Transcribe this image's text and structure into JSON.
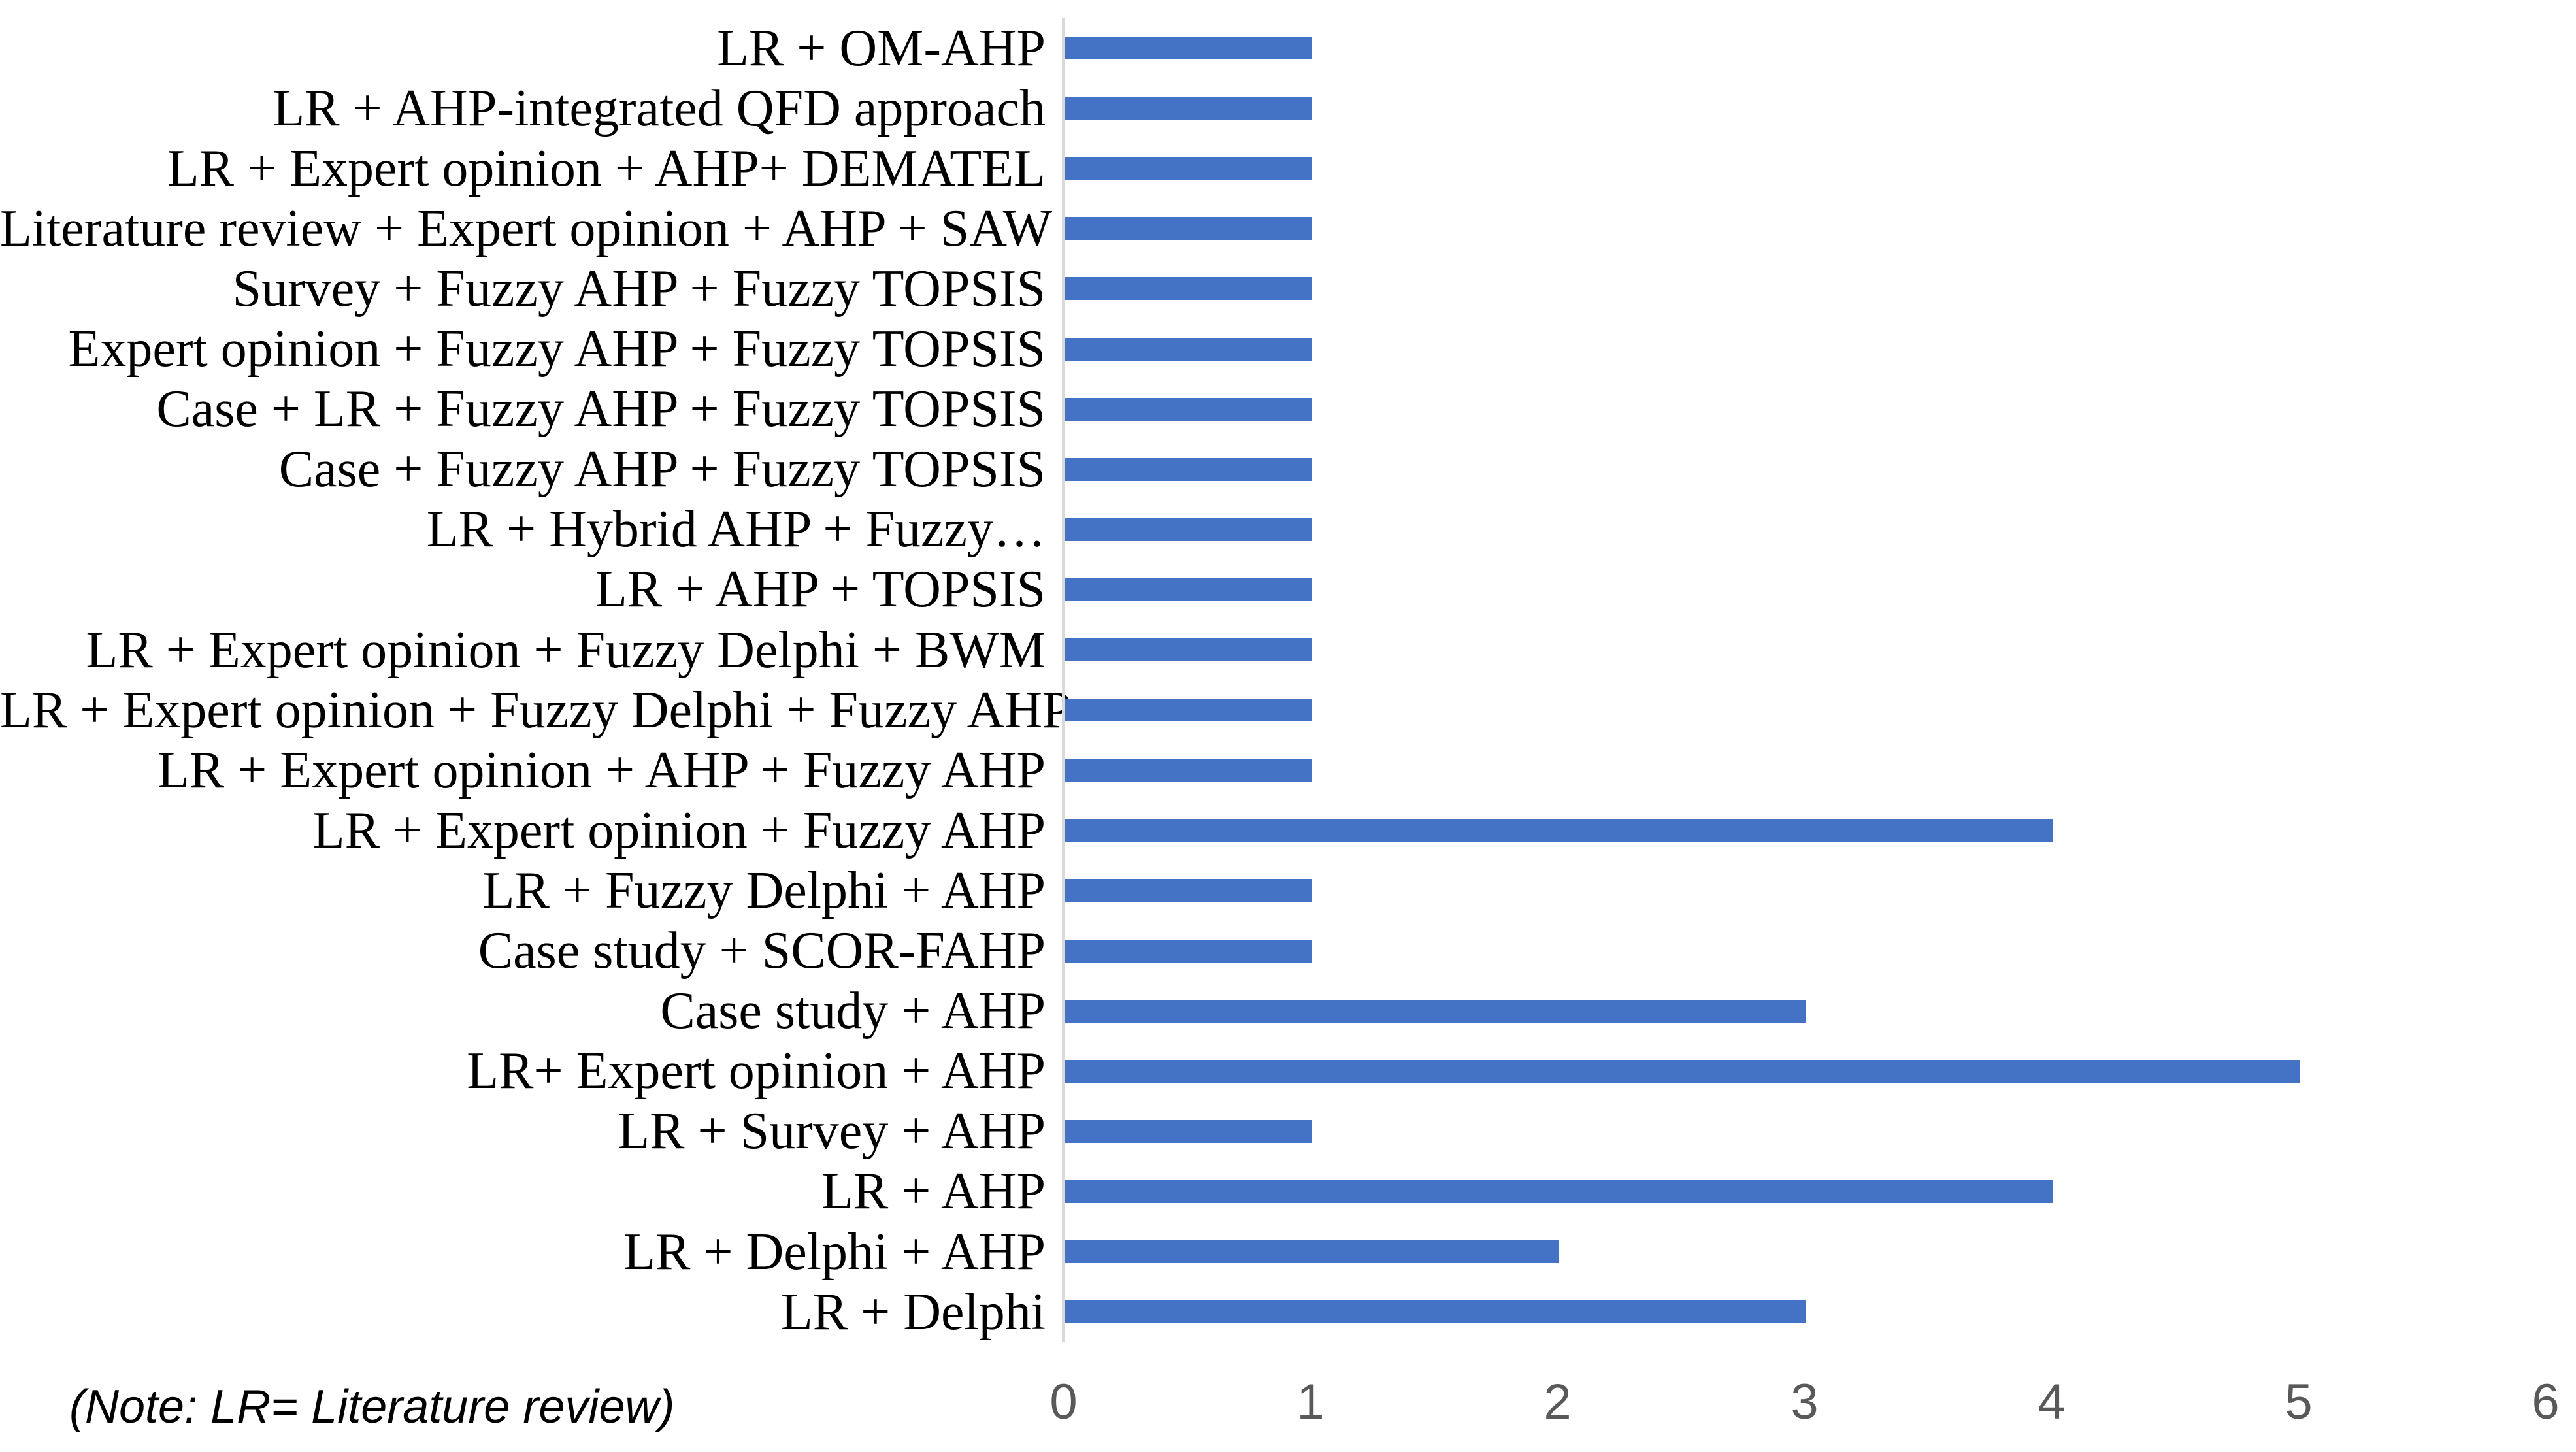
{
  "chart_data": {
    "type": "bar",
    "orientation": "horizontal",
    "title": "",
    "xlabel": "",
    "ylabel": "",
    "categories": [
      "LR + OM-AHP",
      "LR + AHP-integrated QFD approach",
      "LR + Expert opinion + AHP+ DEMATEL",
      "Literature review + Expert opinion + AHP + SAW",
      "Survey + Fuzzy AHP + Fuzzy TOPSIS",
      "Expert opinion + Fuzzy AHP + Fuzzy TOPSIS",
      "Case + LR + Fuzzy AHP + Fuzzy TOPSIS",
      "Case + Fuzzy AHP + Fuzzy TOPSIS",
      "LR + Hybrid AHP + Fuzzy…",
      "LR + AHP + TOPSIS",
      "LR + Expert opinion + Fuzzy Delphi + BWM",
      "LR + Expert opinion + Fuzzy Delphi + Fuzzy AHP",
      "LR + Expert opinion + AHP + Fuzzy AHP",
      "LR + Expert opinion + Fuzzy AHP",
      "LR + Fuzzy Delphi + AHP",
      "Case study + SCOR-FAHP",
      "Case study + AHP",
      "LR+ Expert opinion + AHP",
      "LR + Survey + AHP",
      "LR + AHP",
      "LR + Delphi + AHP",
      "LR + Delphi"
    ],
    "values": [
      1,
      1,
      1,
      1,
      1,
      1,
      1,
      1,
      1,
      1,
      1,
      1,
      1,
      4,
      1,
      1,
      3,
      5,
      1,
      4,
      2,
      3
    ],
    "xlim": [
      0,
      6
    ],
    "x_tick_labels": [
      "0",
      "1",
      "2",
      "3",
      "4",
      "5",
      "6"
    ],
    "grid": "off",
    "legend": "none",
    "bar_color": "#4472C4",
    "axis_line_color": "#D9D9D9",
    "tick_label_color": "#595959",
    "category_label_color": "#000000"
  },
  "note": "(Note: LR= Literature review)"
}
